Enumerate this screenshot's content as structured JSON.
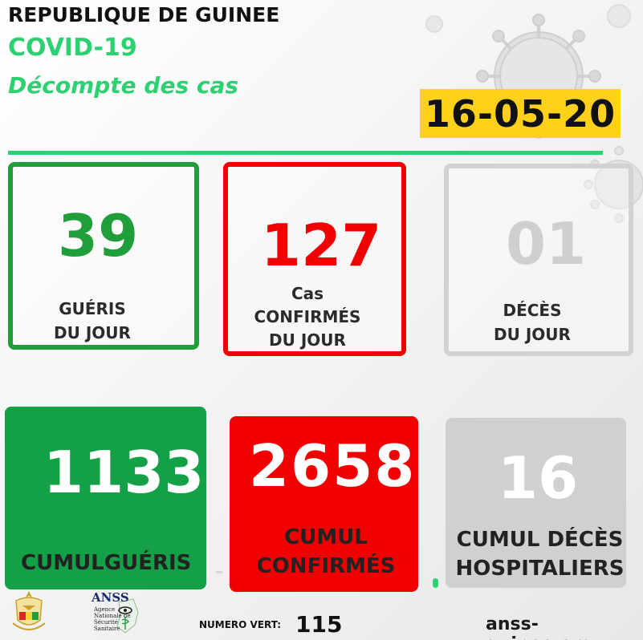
{
  "header": {
    "country": "REPUBLIQUE DE GUINEE",
    "subject": "COVID-19",
    "subtitle": "Décompte des cas",
    "date": "16-05-20"
  },
  "daily": {
    "gueris": {
      "value": "39",
      "line1": "GUÉRIS",
      "line2": "DU JOUR"
    },
    "confirmes": {
      "value": "127",
      "line1": "Cas",
      "line2": "CONFIRMÉS",
      "line3": "DU JOUR"
    },
    "deces": {
      "value": "01",
      "line1": "DÉCÈS",
      "line2": "DU JOUR"
    }
  },
  "cumulative": {
    "gueris": {
      "value": "1133",
      "label": "CUMULGUÉRIS"
    },
    "confirmes": {
      "value": "2658",
      "line1": "CUMUL",
      "line2": "CONFIRMÉS"
    },
    "deces": {
      "value": "16",
      "line1": "CUMUL DÉCÈS",
      "line2": "HOSPITALIERS"
    }
  },
  "footer": {
    "anss_title": "ANSS",
    "anss_sub1": "Agence",
    "anss_sub2": "Nationale de",
    "anss_sub3": "Sécurité",
    "anss_sub4": "Sanitaire",
    "numero_label": "NUMERO VERT:",
    "numero_value": "115",
    "website": "anss-guinee.org"
  },
  "colors": {
    "green": "#1f9e3a",
    "bright_green": "#2cd171",
    "red": "#f00000",
    "grey": "#d0d0d0",
    "yellow": "#ffd11a"
  },
  "icons": [
    "virus-icon",
    "guinea-emblem-icon",
    "anss-logo-icon"
  ]
}
